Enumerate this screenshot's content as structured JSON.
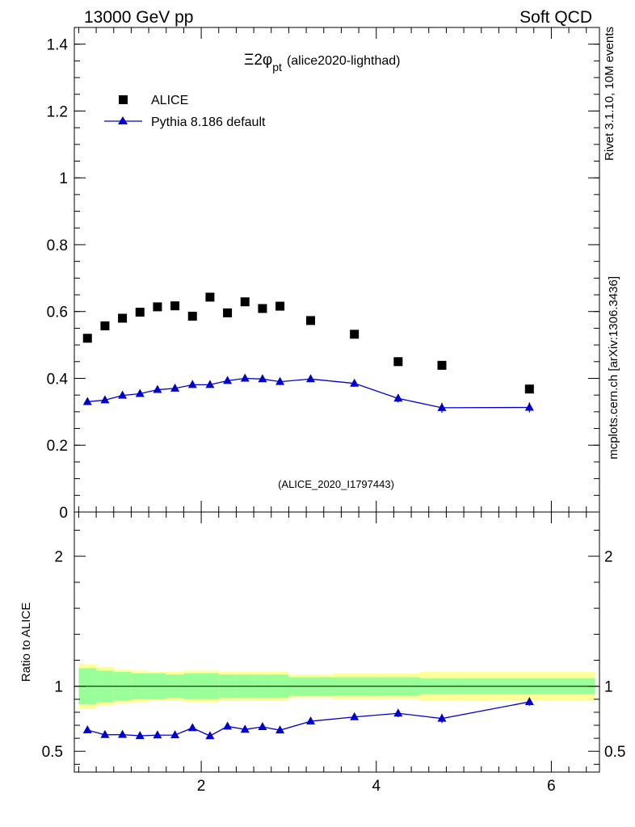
{
  "header": {
    "left": "13000 GeV pp",
    "right": "Soft QCD"
  },
  "side_labels": {
    "rivet": "Rivet 3.1.10,  10M events",
    "mcplots": "mcplots.cern.ch [arXiv:1306.3436]"
  },
  "colors": {
    "data": "#000000",
    "mc": "#0000cc",
    "band_inner": "#99ff99",
    "band_outer": "#ffff99",
    "watermark": "#999999"
  },
  "chart_data": [
    {
      "type": "scatter",
      "panel": "main",
      "title_main": "Ξ2φ",
      "title_sub": "pt",
      "title_tag": "(alice2020-lighthad)",
      "watermark": "(ALICE_2020_I1797443)",
      "xlim": [
        0.55,
        6.55
      ],
      "ylim": [
        0,
        1.45
      ],
      "yticks": [
        0,
        0.2,
        0.4,
        0.6,
        0.8,
        1,
        1.2,
        1.4
      ],
      "ytick_labels": [
        "0",
        "0.2",
        "0.4",
        "0.6",
        "0.8",
        "1",
        "1.2",
        "1.4"
      ],
      "legend": [
        "ALICE",
        "Pythia 8.186 default"
      ],
      "legend_position": "top-left",
      "series": [
        {
          "name": "ALICE",
          "marker": "square",
          "x": [
            0.7,
            0.9,
            1.1,
            1.3,
            1.5,
            1.7,
            1.9,
            2.1,
            2.3,
            2.5,
            2.7,
            2.9,
            3.25,
            3.75,
            4.25,
            4.75,
            5.75
          ],
          "values": [
            0.52,
            0.557,
            0.58,
            0.598,
            0.614,
            0.617,
            0.586,
            0.643,
            0.596,
            0.629,
            0.609,
            0.616,
            0.573,
            0.532,
            0.45,
            0.439,
            0.368
          ]
        },
        {
          "name": "Pythia 8.186 default",
          "marker": "triangle",
          "x": [
            0.7,
            0.9,
            1.1,
            1.3,
            1.5,
            1.7,
            1.9,
            2.1,
            2.3,
            2.5,
            2.7,
            2.9,
            3.25,
            3.75,
            4.25,
            4.75,
            5.75
          ],
          "values": [
            0.33,
            0.335,
            0.349,
            0.354,
            0.366,
            0.37,
            0.381,
            0.381,
            0.393,
            0.4,
            0.398,
            0.39,
            0.398,
            0.385,
            0.34,
            0.312,
            0.313
          ],
          "errors": [
            0.004,
            0.004,
            0.005,
            0.005,
            0.006,
            0.006,
            0.006,
            0.007,
            0.008,
            0.009,
            0.009,
            0.01,
            0.008,
            0.01,
            0.012,
            0.015,
            0.015
          ]
        }
      ]
    },
    {
      "type": "line",
      "panel": "ratio",
      "ylabel": "Ratio to ALICE",
      "xlim": [
        0.55,
        6.55
      ],
      "ylim": [
        0.34,
        2.34
      ],
      "yticks": [
        0.5,
        1,
        2
      ],
      "ytick_labels": [
        "0.5",
        "1",
        "2"
      ],
      "xticks": [
        2,
        4,
        6
      ],
      "xtick_labels": [
        "2",
        "4",
        "6"
      ],
      "reference_line": 1,
      "bands": {
        "edges": [
          0.6,
          0.8,
          1.0,
          1.2,
          1.4,
          1.6,
          1.8,
          2.0,
          2.2,
          2.4,
          2.6,
          2.8,
          3.0,
          3.5,
          4.0,
          4.5,
          5.0,
          6.5
        ],
        "inner": [
          0.14,
          0.12,
          0.11,
          0.1,
          0.1,
          0.09,
          0.1,
          0.1,
          0.09,
          0.09,
          0.09,
          0.09,
          0.07,
          0.07,
          0.07,
          0.06,
          0.06
        ],
        "outer": [
          0.17,
          0.15,
          0.13,
          0.12,
          0.11,
          0.11,
          0.12,
          0.12,
          0.11,
          0.11,
          0.11,
          0.11,
          0.09,
          0.1,
          0.1,
          0.11,
          0.11
        ]
      },
      "series": [
        {
          "name": "Pythia 8.186 default / ALICE",
          "marker": "triangle",
          "x": [
            0.7,
            0.9,
            1.1,
            1.3,
            1.5,
            1.7,
            1.9,
            2.1,
            2.3,
            2.5,
            2.7,
            2.9,
            3.25,
            3.75,
            4.25,
            4.75,
            5.75
          ],
          "values": [
            0.663,
            0.627,
            0.628,
            0.619,
            0.624,
            0.625,
            0.68,
            0.618,
            0.692,
            0.668,
            0.688,
            0.662,
            0.731,
            0.764,
            0.792,
            0.752,
            0.88
          ],
          "errors": [
            0.01,
            0.01,
            0.01,
            0.01,
            0.01,
            0.01,
            0.012,
            0.012,
            0.012,
            0.014,
            0.016,
            0.018,
            0.015,
            0.02,
            0.03,
            0.035,
            0.03
          ]
        }
      ]
    }
  ]
}
